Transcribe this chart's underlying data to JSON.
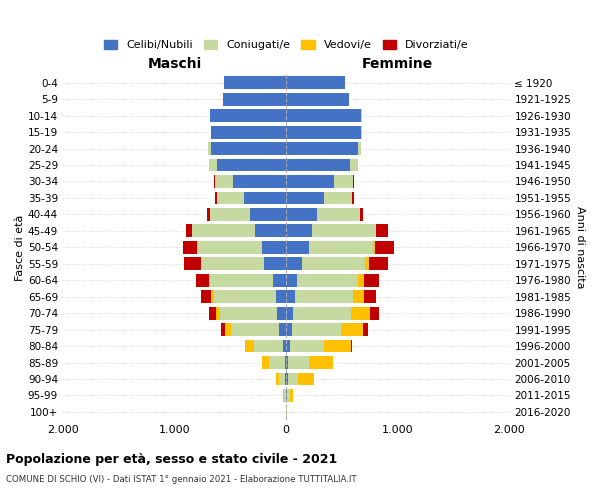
{
  "age_groups": [
    "0-4",
    "5-9",
    "10-14",
    "15-19",
    "20-24",
    "25-29",
    "30-34",
    "35-39",
    "40-44",
    "45-49",
    "50-54",
    "55-59",
    "60-64",
    "65-69",
    "70-74",
    "75-79",
    "80-84",
    "85-89",
    "90-94",
    "95-99",
    "100+"
  ],
  "birth_years": [
    "2016-2020",
    "2011-2015",
    "2006-2010",
    "2001-2005",
    "1996-2000",
    "1991-1995",
    "1986-1990",
    "1981-1985",
    "1976-1980",
    "1971-1975",
    "1966-1970",
    "1961-1965",
    "1956-1960",
    "1951-1955",
    "1946-1950",
    "1941-1945",
    "1936-1940",
    "1931-1935",
    "1926-1930",
    "1921-1925",
    "≤ 1920"
  ],
  "males": {
    "celibi": [
      560,
      570,
      680,
      670,
      670,
      620,
      480,
      380,
      320,
      280,
      220,
      200,
      120,
      90,
      80,
      60,
      30,
      15,
      10,
      5,
      2
    ],
    "coniugati": [
      0,
      0,
      5,
      5,
      30,
      70,
      160,
      240,
      360,
      560,
      570,
      560,
      560,
      560,
      510,
      430,
      260,
      140,
      55,
      15,
      2
    ],
    "vedovi": [
      0,
      0,
      0,
      0,
      0,
      0,
      0,
      0,
      0,
      0,
      5,
      5,
      10,
      20,
      40,
      60,
      80,
      60,
      30,
      5,
      0
    ],
    "divorziati": [
      0,
      0,
      0,
      0,
      0,
      5,
      10,
      20,
      30,
      60,
      130,
      150,
      120,
      90,
      60,
      30,
      0,
      0,
      0,
      0,
      0
    ]
  },
  "females": {
    "nubili": [
      530,
      560,
      670,
      670,
      640,
      570,
      430,
      340,
      280,
      230,
      200,
      140,
      100,
      80,
      60,
      50,
      30,
      20,
      15,
      5,
      2
    ],
    "coniugate": [
      0,
      0,
      5,
      5,
      30,
      70,
      170,
      250,
      380,
      570,
      580,
      570,
      540,
      520,
      520,
      440,
      310,
      180,
      90,
      25,
      2
    ],
    "vedove": [
      0,
      0,
      0,
      0,
      0,
      0,
      0,
      0,
      0,
      5,
      15,
      30,
      60,
      100,
      170,
      200,
      240,
      220,
      140,
      35,
      5
    ],
    "divorziate": [
      0,
      0,
      0,
      0,
      0,
      5,
      10,
      20,
      30,
      110,
      170,
      170,
      130,
      100,
      80,
      40,
      10,
      0,
      0,
      0,
      0
    ]
  },
  "colors": {
    "celibi": "#4472c4",
    "coniugati": "#c5d9a0",
    "vedovi": "#ffc000",
    "divorziati": "#c00000"
  },
  "xlim": 2000,
  "xticks": [
    -2000,
    -1000,
    0,
    1000,
    2000
  ],
  "xtick_labels": [
    "2.000",
    "1.000",
    "0",
    "1.000",
    "2.000"
  ],
  "title_main": "Popolazione per età, sesso e stato civile - 2021",
  "subtitle": "COMUNE DI SCHIO (VI) - Dati ISTAT 1° gennaio 2021 - Elaborazione TUTTITALIA.IT",
  "ylabel_left": "Fasce di età",
  "ylabel_right": "Anni di nascita",
  "label_maschi": "Maschi",
  "label_femmine": "Femmine",
  "legend_labels": [
    "Celibi/Nubili",
    "Coniugati/e",
    "Vedovi/e",
    "Divorziati/e"
  ],
  "bg_color": "#ffffff",
  "grid_color": "#cccccc"
}
